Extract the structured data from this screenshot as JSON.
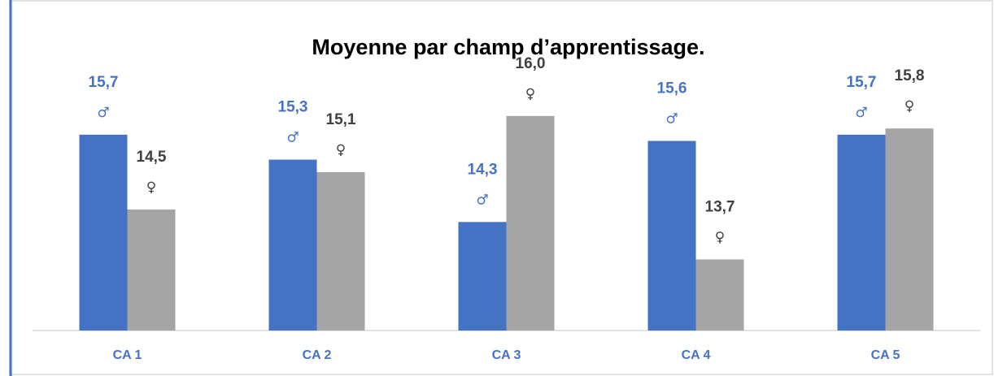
{
  "chart_data": {
    "type": "bar",
    "title": "Moyenne par champ d’apprentissage.",
    "categories": [
      "CA 1",
      "CA 2",
      "CA 3",
      "CA 4",
      "CA 5"
    ],
    "series": [
      {
        "name": "♂",
        "color": "#4472c4",
        "label_color": "#4472c4",
        "values": [
          15.7,
          15.3,
          14.3,
          15.6,
          15.7
        ],
        "value_labels": [
          "15,7",
          "15,3",
          "14,3",
          "15,6",
          "15,7"
        ]
      },
      {
        "name": "♀",
        "color": "#a5a5a5",
        "label_color": "#404040",
        "values": [
          14.5,
          15.1,
          16.0,
          13.7,
          15.8
        ],
        "value_labels": [
          "14,5",
          "15,1",
          "16,0",
          "13,7",
          "15,8"
        ]
      }
    ],
    "ylim": [
      12.56,
      17
    ]
  }
}
